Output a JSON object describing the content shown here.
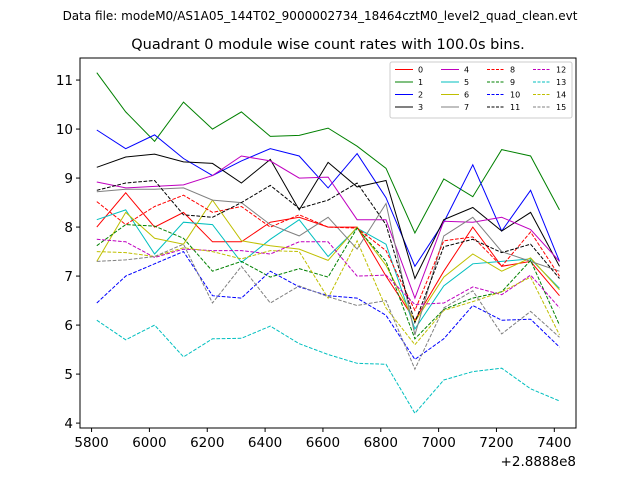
{
  "chart_data": {
    "type": "line",
    "suptitle": "Data file: modeM0/AS1A05_144T02_9000002734_18464cztM0_level2_quad_clean.evt",
    "title": "Quadrant 0 module wise count rates with 100.0s bins.",
    "xlabel": "",
    "ylabel": "",
    "x_offset_label": "+2.8888e8",
    "x": [
      5818,
      5918,
      6018,
      6118,
      6218,
      6318,
      6418,
      6518,
      6618,
      6718,
      6818,
      6918,
      7018,
      7118,
      7218,
      7318,
      7418
    ],
    "xlim": [
      5760,
      7475
    ],
    "ylim": [
      3.9,
      11.45
    ],
    "x_ticks": [
      5800,
      6000,
      6200,
      6400,
      6600,
      6800,
      7000,
      7200,
      7400
    ],
    "y_ticks": [
      4,
      5,
      6,
      7,
      8,
      9,
      10,
      11
    ],
    "grid": false,
    "legend_position": "top-right",
    "series": [
      {
        "name": "0",
        "color": "#ff0000",
        "dash": "solid",
        "values": [
          8.0,
          8.7,
          8.0,
          8.3,
          7.7,
          7.7,
          8.1,
          8.2,
          8.0,
          8.0,
          7.0,
          6.1,
          7.1,
          8.0,
          7.2,
          7.3,
          6.6
        ]
      },
      {
        "name": "1",
        "color": "#008000",
        "dash": "solid",
        "values": [
          11.15,
          10.35,
          9.75,
          10.55,
          10.0,
          10.35,
          9.85,
          9.87,
          10.02,
          9.65,
          9.2,
          7.88,
          8.98,
          8.62,
          9.58,
          9.45,
          8.35
        ]
      },
      {
        "name": "2",
        "color": "#0000ff",
        "dash": "solid",
        "values": [
          9.98,
          9.6,
          9.88,
          9.4,
          9.05,
          9.35,
          9.6,
          9.45,
          8.8,
          9.5,
          8.6,
          7.2,
          8.1,
          9.27,
          7.92,
          8.75,
          7.3
        ]
      },
      {
        "name": "3",
        "color": "#000000",
        "dash": "solid",
        "values": [
          9.22,
          9.43,
          9.49,
          9.33,
          9.3,
          8.9,
          9.38,
          8.35,
          9.32,
          8.82,
          8.95,
          6.95,
          8.15,
          8.4,
          7.92,
          8.3,
          7.2
        ]
      },
      {
        "name": "4",
        "color": "#bf00bf",
        "dash": "solid",
        "values": [
          8.92,
          8.8,
          8.83,
          8.86,
          9.05,
          9.45,
          9.35,
          9.0,
          9.02,
          8.15,
          8.15,
          6.55,
          8.12,
          8.1,
          8.2,
          7.95,
          7.3
        ]
      },
      {
        "name": "5",
        "color": "#00bfbf",
        "dash": "solid",
        "values": [
          8.15,
          8.35,
          7.45,
          8.1,
          8.05,
          7.28,
          7.75,
          8.15,
          7.4,
          7.98,
          7.65,
          5.92,
          6.8,
          7.25,
          7.3,
          7.35,
          6.75
        ]
      },
      {
        "name": "6",
        "color": "#bfbf00",
        "dash": "solid",
        "values": [
          7.3,
          8.3,
          7.77,
          7.65,
          8.55,
          7.72,
          7.62,
          7.55,
          7.32,
          8.0,
          7.22,
          6.07,
          6.98,
          7.45,
          7.1,
          7.37,
          6.72
        ]
      },
      {
        "name": "7",
        "color": "#808080",
        "dash": "solid",
        "values": [
          8.72,
          8.77,
          8.77,
          8.8,
          8.55,
          8.5,
          8.05,
          7.82,
          8.2,
          7.55,
          8.48,
          5.8,
          7.82,
          8.2,
          7.5,
          7.3,
          7.1
        ]
      },
      {
        "name": "8",
        "color": "#ff0000",
        "dash": "dashed",
        "values": [
          8.52,
          8.05,
          8.42,
          8.65,
          8.3,
          8.42,
          8.0,
          8.25,
          8.0,
          7.98,
          7.52,
          6.3,
          7.72,
          7.8,
          7.2,
          7.9,
          7.0
        ]
      },
      {
        "name": "9",
        "color": "#008000",
        "dash": "dashed",
        "values": [
          7.62,
          8.05,
          8.02,
          7.77,
          7.1,
          7.3,
          6.98,
          7.15,
          6.98,
          7.98,
          7.3,
          5.72,
          6.32,
          6.55,
          6.68,
          7.32,
          6.0
        ]
      },
      {
        "name": "10",
        "color": "#0000ff",
        "dash": "dashed",
        "values": [
          6.45,
          7.0,
          7.25,
          7.5,
          6.6,
          6.55,
          7.1,
          6.78,
          6.6,
          6.55,
          6.2,
          5.3,
          5.72,
          6.4,
          6.1,
          6.12,
          5.55
        ]
      },
      {
        "name": "11",
        "color": "#000000",
        "dash": "dashed",
        "values": [
          8.75,
          8.9,
          8.95,
          8.25,
          8.2,
          8.5,
          8.85,
          8.38,
          8.55,
          8.9,
          8.05,
          6.05,
          7.6,
          7.75,
          7.48,
          7.65,
          6.95
        ]
      },
      {
        "name": "12",
        "color": "#bf00bf",
        "dash": "dashed",
        "values": [
          7.75,
          7.7,
          7.38,
          7.55,
          7.52,
          7.52,
          7.45,
          7.7,
          7.7,
          7.0,
          7.02,
          6.42,
          6.45,
          6.78,
          6.62,
          7.02,
          6.35
        ]
      },
      {
        "name": "13",
        "color": "#00bfbf",
        "dash": "dashed",
        "values": [
          6.1,
          5.7,
          6.0,
          5.35,
          5.72,
          5.73,
          5.98,
          5.62,
          5.4,
          5.22,
          5.2,
          4.2,
          4.88,
          5.05,
          5.12,
          4.7,
          4.45
        ]
      },
      {
        "name": "14",
        "color": "#bfbf00",
        "dash": "dashed",
        "values": [
          7.5,
          7.48,
          7.4,
          7.58,
          7.5,
          7.35,
          7.52,
          7.5,
          6.55,
          7.72,
          6.35,
          5.6,
          6.3,
          6.48,
          6.68,
          6.98,
          5.8
        ]
      },
      {
        "name": "15",
        "color": "#808080",
        "dash": "dashed",
        "values": [
          7.3,
          7.33,
          7.4,
          7.65,
          6.45,
          7.2,
          6.45,
          6.8,
          6.58,
          6.4,
          6.5,
          5.1,
          6.35,
          6.7,
          5.82,
          6.28,
          5.75
        ]
      }
    ]
  }
}
